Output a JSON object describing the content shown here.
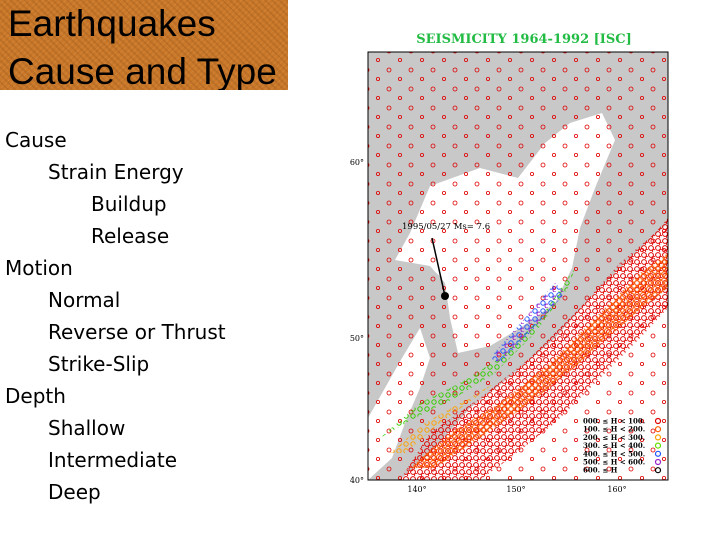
{
  "title": {
    "lines": [
      "Earthquakes",
      "Cause and Type"
    ]
  },
  "outline": [
    {
      "text": "Cause",
      "children": [
        {
          "text": "Strain Energy",
          "children": [
            {
              "text": "Buildup"
            },
            {
              "text": "Release"
            }
          ]
        }
      ]
    },
    {
      "text": "Motion",
      "children": [
        {
          "text": "Normal"
        },
        {
          "text": "Reverse or Thrust"
        },
        {
          "text": "Strike-Slip"
        }
      ]
    },
    {
      "text": "Depth",
      "children": [
        {
          "text": "Shallow"
        },
        {
          "text": "Intermediate"
        },
        {
          "text": "Deep"
        }
      ]
    }
  ],
  "map": {
    "title": "SEISMICITY 1964-1992 [ISC]",
    "annotation": "1995/05/27 Ms= 7.6",
    "lat_labels": [
      "60°",
      "50°",
      "40°"
    ],
    "lon_labels": [
      "140°",
      "150°",
      "160°"
    ],
    "legend": [
      {
        "label": "000. ≤ H < 100.",
        "color": "#e00000"
      },
      {
        "label": "100. ≤ H < 200.",
        "color": "#ff5a00"
      },
      {
        "label": "200. ≤ H < 300.",
        "color": "#ffa000"
      },
      {
        "label": "300. ≤ H < 400.",
        "color": "#66dd00"
      },
      {
        "label": "400. ≤ H < 500.",
        "color": "#2255ff"
      },
      {
        "label": "500. ≤ H < 600.",
        "color": "#9922cc"
      },
      {
        "label": "600. ≤ H",
        "color": "#000000"
      }
    ]
  }
}
